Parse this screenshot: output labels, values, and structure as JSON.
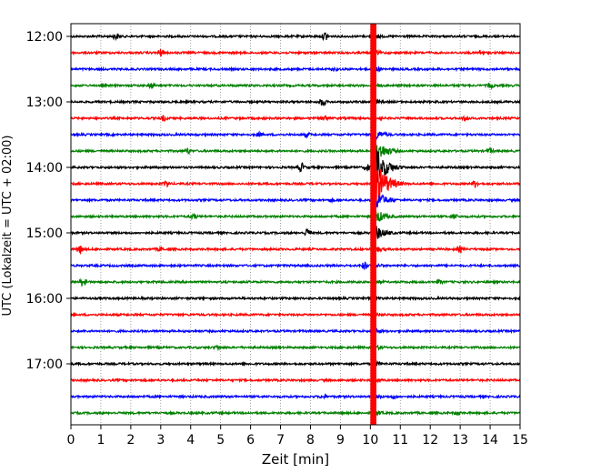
{
  "chart_data": {
    "type": "line",
    "title": "",
    "xlabel": "Zeit  [min]",
    "ylabel": "UTC (Lokalzeit = UTC + 02:00)",
    "xlim": [
      0,
      15
    ],
    "x_ticks": [
      "0",
      "1",
      "2",
      "3",
      "4",
      "5",
      "6",
      "7",
      "8",
      "9",
      "10",
      "11",
      "12",
      "13",
      "14",
      "15"
    ],
    "y_tick_labels": [
      "12:00",
      "13:00",
      "14:00",
      "15:00",
      "16:00",
      "17:00"
    ],
    "grid": "vertical dotted",
    "colors": [
      "#000000",
      "#ff0000",
      "#0000ff",
      "#008000"
    ],
    "row_interval_min": 15,
    "start_time": "11:45",
    "rows": [
      {
        "row": 0,
        "t": "12:00",
        "color": "#000000",
        "events": [
          [
            1.5,
            3
          ],
          [
            8.5,
            5
          ]
        ],
        "quake": 1.0
      },
      {
        "row": 1,
        "t": "12:15",
        "color": "#ff0000",
        "events": [
          [
            3.0,
            4
          ],
          [
            13.7,
            3
          ]
        ],
        "quake": 1.0
      },
      {
        "row": 2,
        "t": "12:30",
        "color": "#0000ff",
        "events": [
          [
            8.8,
            2
          ]
        ],
        "quake": 1.0
      },
      {
        "row": 3,
        "t": "12:45",
        "color": "#008000",
        "events": [
          [
            2.7,
            3
          ],
          [
            14.0,
            3
          ]
        ],
        "quake": 1.0
      },
      {
        "row": 4,
        "t": "13:00",
        "color": "#000000",
        "events": [
          [
            8.4,
            5
          ]
        ],
        "quake": 1.0
      },
      {
        "row": 5,
        "t": "13:15",
        "color": "#ff0000",
        "events": [
          [
            3.1,
            3
          ],
          [
            8.5,
            3
          ],
          [
            13.2,
            4
          ]
        ],
        "quake": 1.0
      },
      {
        "row": 6,
        "t": "13:30",
        "color": "#0000ff",
        "events": [
          [
            6.3,
            2
          ],
          [
            7.9,
            2
          ]
        ],
        "quake": 2.0
      },
      {
        "row": 7,
        "t": "13:45",
        "color": "#008000",
        "events": [
          [
            3.9,
            3
          ],
          [
            14.0,
            3
          ]
        ],
        "quake": 5.0
      },
      {
        "row": 8,
        "t": "14:00",
        "color": "#000000",
        "events": [
          [
            7.7,
            5
          ],
          [
            9.9,
            3
          ]
        ],
        "quake": 8.0
      },
      {
        "row": 9,
        "t": "14:15",
        "color": "#ff0000",
        "events": [
          [
            3.2,
            4
          ],
          [
            13.5,
            4
          ]
        ],
        "quake": 10.0
      },
      {
        "row": 10,
        "t": "14:30",
        "color": "#0000ff",
        "events": [
          [
            8.7,
            2
          ]
        ],
        "quake": 4.0
      },
      {
        "row": 11,
        "t": "14:45",
        "color": "#008000",
        "events": [
          [
            4.1,
            3
          ],
          [
            12.8,
            3
          ]
        ],
        "quake": 3.0
      },
      {
        "row": 12,
        "t": "15:00",
        "color": "#000000",
        "events": [
          [
            7.9,
            5
          ]
        ],
        "quake": 3.0
      },
      {
        "row": 13,
        "t": "15:15",
        "color": "#ff0000",
        "events": [
          [
            0.3,
            5
          ],
          [
            3.0,
            2
          ],
          [
            13.0,
            3
          ]
        ],
        "quake": 1.5
      },
      {
        "row": 14,
        "t": "15:30",
        "color": "#0000ff",
        "events": [
          [
            9.8,
            4
          ]
        ],
        "quake": 1.0
      },
      {
        "row": 15,
        "t": "15:45",
        "color": "#008000",
        "events": [
          [
            0.4,
            5
          ],
          [
            12.3,
            2
          ]
        ],
        "quake": 1.0
      },
      {
        "row": 16,
        "t": "16:00",
        "color": "#000000",
        "events": [],
        "quake": 1.0
      },
      {
        "row": 17,
        "t": "16:15",
        "color": "#ff0000",
        "events": [],
        "quake": 1.0
      },
      {
        "row": 18,
        "t": "16:30",
        "color": "#0000ff",
        "events": [],
        "quake": 1.0
      },
      {
        "row": 19,
        "t": "16:45",
        "color": "#008000",
        "events": [
          [
            4.9,
            2
          ]
        ],
        "quake": 1.0
      },
      {
        "row": 20,
        "t": "17:00",
        "color": "#000000",
        "events": [],
        "quake": 1.0
      },
      {
        "row": 21,
        "t": "17:15",
        "color": "#ff0000",
        "events": [],
        "quake": 1.0
      },
      {
        "row": 22,
        "t": "17:30",
        "color": "#0000ff",
        "events": [
          [
            8.4,
            2
          ],
          [
            10.8,
            2
          ]
        ],
        "quake": 1.0
      },
      {
        "row": 23,
        "t": "17:45",
        "color": "#008000",
        "events": [
          [
            12.9,
            2
          ]
        ],
        "quake": 1.0
      }
    ],
    "red_band_x": [
      10.0,
      10.2
    ]
  }
}
